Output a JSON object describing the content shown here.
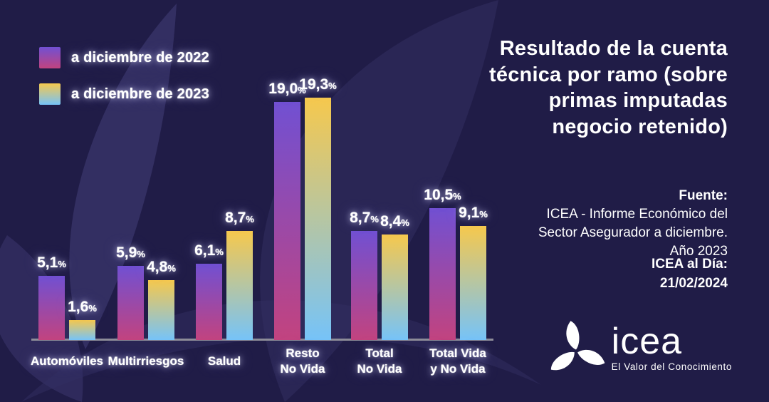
{
  "title": "Resultado de la cuenta técnica por ramo (sobre primas imputadas negocio retenido)",
  "legend": {
    "items": [
      {
        "label": "a diciembre de 2022"
      },
      {
        "label": "a diciembre de 2023"
      }
    ]
  },
  "chart_data": {
    "type": "bar",
    "title": "Resultado de la cuenta técnica por ramo (sobre primas imputadas negocio retenido)",
    "categories": [
      "Automóviles",
      "Multirriesgos",
      "Salud",
      "Resto\nNo Vida",
      "Total\nNo Vida",
      "Total Vida\ny No Vida"
    ],
    "series": [
      {
        "name": "a diciembre de 2022",
        "values": [
          5.1,
          5.9,
          6.1,
          19.0,
          8.7,
          10.5
        ],
        "labels": [
          "5,1%",
          "5,9%",
          "6,1%",
          "19,0%",
          "8,7%",
          "10,5%"
        ]
      },
      {
        "name": "a diciembre de 2023",
        "values": [
          1.6,
          4.8,
          8.7,
          19.3,
          8.4,
          9.1
        ],
        "labels": [
          "1,6%",
          "4,8%",
          "8,7%",
          "19,3%",
          "8,4%",
          "9,1%"
        ]
      }
    ],
    "value_format": "percent with decimal comma",
    "ylim": [
      0,
      20
    ],
    "grid": false,
    "legend_position": "top-left"
  },
  "source": {
    "line1": "Fuente:",
    "line2": "ICEA - Informe Económico del",
    "line3": "Sector Asegurador a diciembre.",
    "line4": "Año 2023"
  },
  "update": {
    "line1": "ICEA al Día:",
    "line2": "21/02/2024"
  },
  "logo": {
    "wordmark": "icea",
    "tagline": "El Valor del Conocimiento"
  },
  "colors": {
    "background": "#201c47",
    "leaf_shape": "#3a3566",
    "bar_2022_top": "#7150d2",
    "bar_2022_bottom": "#c2437f",
    "bar_2023_top": "#f6c84d",
    "bar_2023_bottom": "#76c3f8",
    "axis_line": "#8e8d99",
    "text": "#ffffff"
  }
}
